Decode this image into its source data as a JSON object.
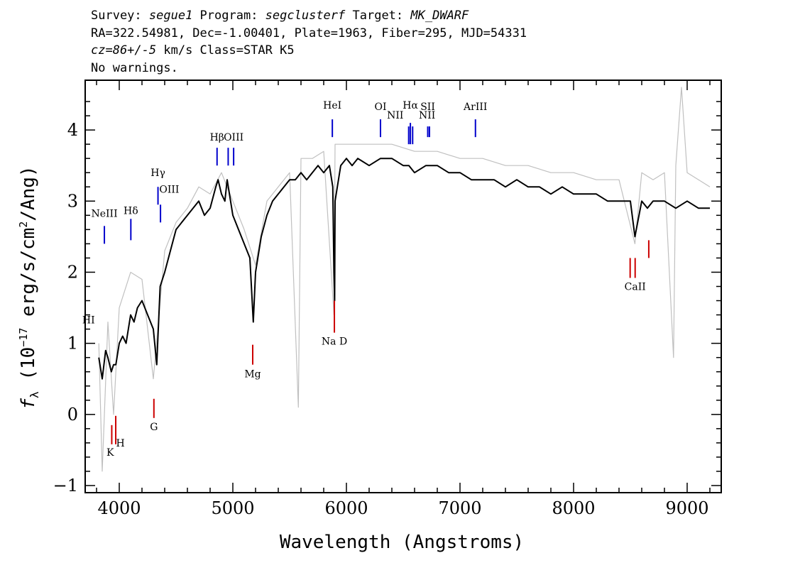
{
  "header": {
    "survey_prefix": "Survey: ",
    "survey": "segue1",
    "program_prefix": " Program: ",
    "program": "segclusterf",
    "target_prefix": " Target: ",
    "target": "MK_DWARF",
    "line2": "RA=322.54981, Dec=-1.00401, Plate=1963, Fiber=295, MJD=54331",
    "cz": "cz=86+/-5",
    "line3_rest": " km/s Class=STAR K5",
    "line4": "No warnings."
  },
  "chart_data": {
    "type": "line",
    "xlabel": "Wavelength (Angstroms)",
    "ylabel": "f_λ (10^-17 erg/s/cm^2/Ang)",
    "xlim": [
      3700,
      9300
    ],
    "ylim": [
      -1.1,
      4.7
    ],
    "x_ticks": [
      4000,
      5000,
      6000,
      7000,
      8000,
      9000
    ],
    "y_ticks": [
      -1,
      0,
      1,
      2,
      3,
      4
    ],
    "grid": false,
    "colors": {
      "flux": "#000000",
      "raw": "#c0c0c0",
      "emission": "#0000cc",
      "absorption": "#cc0000",
      "line_label": "#000000"
    },
    "series": [
      {
        "role": "smoothed flux",
        "x": [
          3820,
          3850,
          3880,
          3900,
          3930,
          3950,
          3970,
          4000,
          4030,
          4060,
          4100,
          4130,
          4160,
          4200,
          4250,
          4300,
          4330,
          4360,
          4400,
          4450,
          4500,
          4550,
          4600,
          4650,
          4700,
          4750,
          4800,
          4850,
          4870,
          4900,
          4930,
          4950,
          4980,
          5000,
          5050,
          5100,
          5150,
          5180,
          5200,
          5250,
          5300,
          5350,
          5400,
          5450,
          5500,
          5550,
          5600,
          5650,
          5700,
          5750,
          5800,
          5850,
          5880,
          5890,
          5896,
          5900,
          5950,
          6000,
          6050,
          6100,
          6200,
          6300,
          6400,
          6500,
          6550,
          6600,
          6700,
          6800,
          6900,
          7000,
          7100,
          7200,
          7300,
          7400,
          7500,
          7600,
          7700,
          7800,
          7900,
          8000,
          8100,
          8200,
          8300,
          8400,
          8450,
          8500,
          8540,
          8600,
          8650,
          8700,
          8800,
          8900,
          9000,
          9100,
          9200
        ],
        "y": [
          0.8,
          0.5,
          0.9,
          0.8,
          0.6,
          0.7,
          0.7,
          1.0,
          1.1,
          1.0,
          1.4,
          1.3,
          1.5,
          1.6,
          1.4,
          1.2,
          0.7,
          1.8,
          2.0,
          2.3,
          2.6,
          2.7,
          2.8,
          2.9,
          3.0,
          2.8,
          2.9,
          3.2,
          3.3,
          3.1,
          3.0,
          3.3,
          3.0,
          2.8,
          2.6,
          2.4,
          2.2,
          1.3,
          2.0,
          2.5,
          2.8,
          3.0,
          3.1,
          3.2,
          3.3,
          3.3,
          3.4,
          3.3,
          3.4,
          3.5,
          3.4,
          3.5,
          3.2,
          2.0,
          1.6,
          3.0,
          3.5,
          3.6,
          3.5,
          3.6,
          3.5,
          3.6,
          3.6,
          3.5,
          3.5,
          3.4,
          3.5,
          3.5,
          3.4,
          3.4,
          3.3,
          3.3,
          3.3,
          3.2,
          3.3,
          3.2,
          3.2,
          3.1,
          3.2,
          3.1,
          3.1,
          3.1,
          3.0,
          3.0,
          3.0,
          3.0,
          2.5,
          3.0,
          2.9,
          3.0,
          3.0,
          2.9,
          3.0,
          2.9,
          2.9
        ]
      },
      {
        "role": "raw flux",
        "x": [
          3820,
          3850,
          3900,
          3950,
          4000,
          4100,
          4200,
          4300,
          4400,
          4500,
          4600,
          4700,
          4800,
          4900,
          5000,
          5100,
          5200,
          5300,
          5400,
          5500,
          5577,
          5600,
          5700,
          5800,
          5890,
          5900,
          6000,
          6200,
          6400,
          6600,
          6800,
          7000,
          7200,
          7400,
          7600,
          7800,
          8000,
          8200,
          8400,
          8540,
          8600,
          8700,
          8800,
          8880,
          8900,
          8950,
          9000,
          9100,
          9200
        ],
        "y": [
          1.0,
          -0.8,
          1.3,
          0.0,
          1.5,
          2.0,
          1.9,
          0.5,
          2.3,
          2.7,
          2.9,
          3.2,
          3.1,
          3.4,
          3.0,
          2.6,
          2.1,
          3.0,
          3.2,
          3.4,
          0.1,
          3.6,
          3.6,
          3.7,
          1.4,
          3.8,
          3.8,
          3.8,
          3.8,
          3.7,
          3.7,
          3.6,
          3.6,
          3.5,
          3.5,
          3.4,
          3.4,
          3.3,
          3.3,
          2.4,
          3.4,
          3.3,
          3.4,
          0.8,
          3.5,
          4.6,
          3.4,
          3.3,
          3.2
        ]
      }
    ],
    "emission_lines": [
      {
        "label": "NeIII",
        "x": 3869,
        "y_top": 2.65,
        "y_bottom": 2.4
      },
      {
        "label": "Hδ",
        "x": 4102,
        "y_top": 2.75,
        "y_bottom": 2.45
      },
      {
        "label": "Hγ",
        "x": 4341,
        "y_top": 3.2,
        "y_bottom": 2.95
      },
      {
        "label": "OIII",
        "x": 4363,
        "y_top": 2.95,
        "y_bottom": 2.7
      },
      {
        "label": "Hβ",
        "x": 4861,
        "y_top": 3.75,
        "y_bottom": 3.5
      },
      {
        "label": "OIII",
        "x": 4959,
        "y_top": 3.75,
        "y_bottom": 3.5
      },
      {
        "label": "OIII",
        "x": 5007,
        "y_top": 3.75,
        "y_bottom": 3.5
      },
      {
        "label": "HeI",
        "x": 5876,
        "y_top": 4.15,
        "y_bottom": 3.9
      },
      {
        "label": "OI",
        "x": 6300,
        "y_top": 4.15,
        "y_bottom": 3.9
      },
      {
        "label": "NII",
        "x": 6548,
        "y_top": 4.05,
        "y_bottom": 3.8
      },
      {
        "label": "Hα",
        "x": 6563,
        "y_top": 4.1,
        "y_bottom": 3.8
      },
      {
        "label": "NII",
        "x": 6583,
        "y_top": 4.05,
        "y_bottom": 3.8
      },
      {
        "label": "SII",
        "x": 6716,
        "y_top": 4.05,
        "y_bottom": 3.9
      },
      {
        "label": "SII",
        "x": 6731,
        "y_top": 4.05,
        "y_bottom": 3.9
      },
      {
        "label": "ArIII",
        "x": 7136,
        "y_top": 4.15,
        "y_bottom": 3.9
      }
    ],
    "absorption_lines": [
      {
        "label": "K",
        "x": 3934,
        "y_top": -0.15,
        "y_bottom": -0.42
      },
      {
        "label": "H",
        "x": 3969,
        "y_top": -0.02,
        "y_bottom": -0.42
      },
      {
        "label": "G",
        "x": 4305,
        "y_top": 0.22,
        "y_bottom": -0.05
      },
      {
        "label": "Mg",
        "x": 5175,
        "y_top": 0.98,
        "y_bottom": 0.7
      },
      {
        "label": "Na D",
        "x": 5894,
        "y_top": 1.6,
        "y_bottom": 1.15
      },
      {
        "label": "CaII",
        "x": 8498,
        "y_top": 2.2,
        "y_bottom": 1.92
      },
      {
        "label": "CaII",
        "x": 8542,
        "y_top": 2.2,
        "y_bottom": 1.92
      },
      {
        "label": "CaII",
        "x": 8662,
        "y_top": 2.45,
        "y_bottom": 2.2
      }
    ],
    "line_labels": [
      {
        "text": "NeIII",
        "x": 3869,
        "y": 2.78
      },
      {
        "text": "Hδ",
        "x": 4102,
        "y": 2.82
      },
      {
        "text": "Hγ",
        "x": 4341,
        "y": 3.35
      },
      {
        "text": "OIII",
        "x": 4440,
        "y": 3.12
      },
      {
        "text": "Hβ",
        "x": 4861,
        "y": 3.85
      },
      {
        "text": "OIII",
        "x": 5007,
        "y": 3.85
      },
      {
        "text": "HeI",
        "x": 5876,
        "y": 4.3
      },
      {
        "text": "OI",
        "x": 6300,
        "y": 4.28
      },
      {
        "text": "NII",
        "x": 6430,
        "y": 4.16
      },
      {
        "text": "Hα",
        "x": 6563,
        "y": 4.3
      },
      {
        "text": "SII",
        "x": 6716,
        "y": 4.28
      },
      {
        "text": "NII",
        "x": 6710,
        "y": 4.16
      },
      {
        "text": "ArIII",
        "x": 7136,
        "y": 4.28
      },
      {
        "text": "HI",
        "x": 3730,
        "y": 1.28
      },
      {
        "text": "K",
        "x": 3920,
        "y": -0.58
      },
      {
        "text": "H",
        "x": 4010,
        "y": -0.45
      },
      {
        "text": "G",
        "x": 4305,
        "y": -0.22
      },
      {
        "text": "Mg",
        "x": 5175,
        "y": 0.52
      },
      {
        "text": "Na D",
        "x": 5894,
        "y": 0.98
      },
      {
        "text": "CaII",
        "x": 8542,
        "y": 1.75
      }
    ]
  }
}
